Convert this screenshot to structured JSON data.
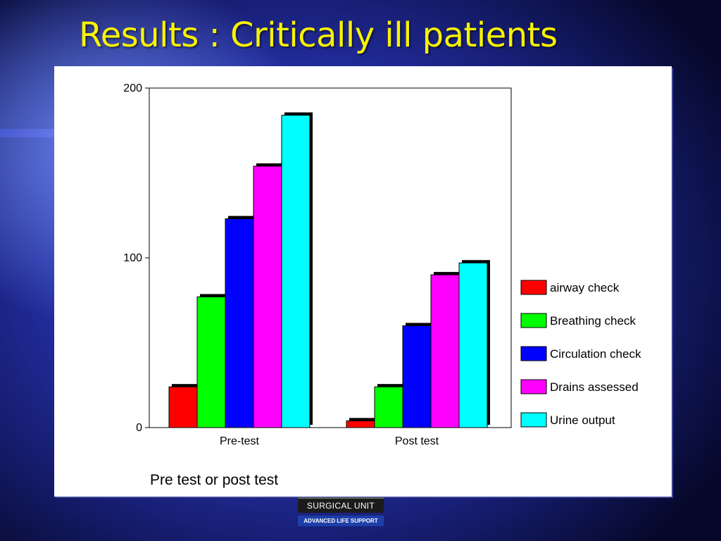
{
  "slide": {
    "title": "Results : Critically ill patients",
    "logo_unit": "SURGICAL UNIT",
    "logo_tagline": "ADVANCED LIFE SUPPORT"
  },
  "chart_data": {
    "type": "bar",
    "title": "",
    "xlabel": "Pre test or post test",
    "ylabel": "",
    "ylim": [
      0,
      200
    ],
    "yticks": [
      0,
      100,
      200
    ],
    "categories": [
      "Pre-test",
      "Post test"
    ],
    "grid": false,
    "legend_position": "right",
    "series": [
      {
        "name": "airway check",
        "color": "#ff0000",
        "values": [
          24,
          4
        ]
      },
      {
        "name": "Breathing check",
        "color": "#00ff00",
        "values": [
          77,
          24
        ]
      },
      {
        "name": "Circulation check",
        "color": "#0000ff",
        "values": [
          123,
          60
        ]
      },
      {
        "name": "Drains assessed",
        "color": "#ff00ff",
        "values": [
          154,
          90
        ]
      },
      {
        "name": "Urine output",
        "color": "#00ffff",
        "values": [
          184,
          97
        ]
      }
    ]
  }
}
